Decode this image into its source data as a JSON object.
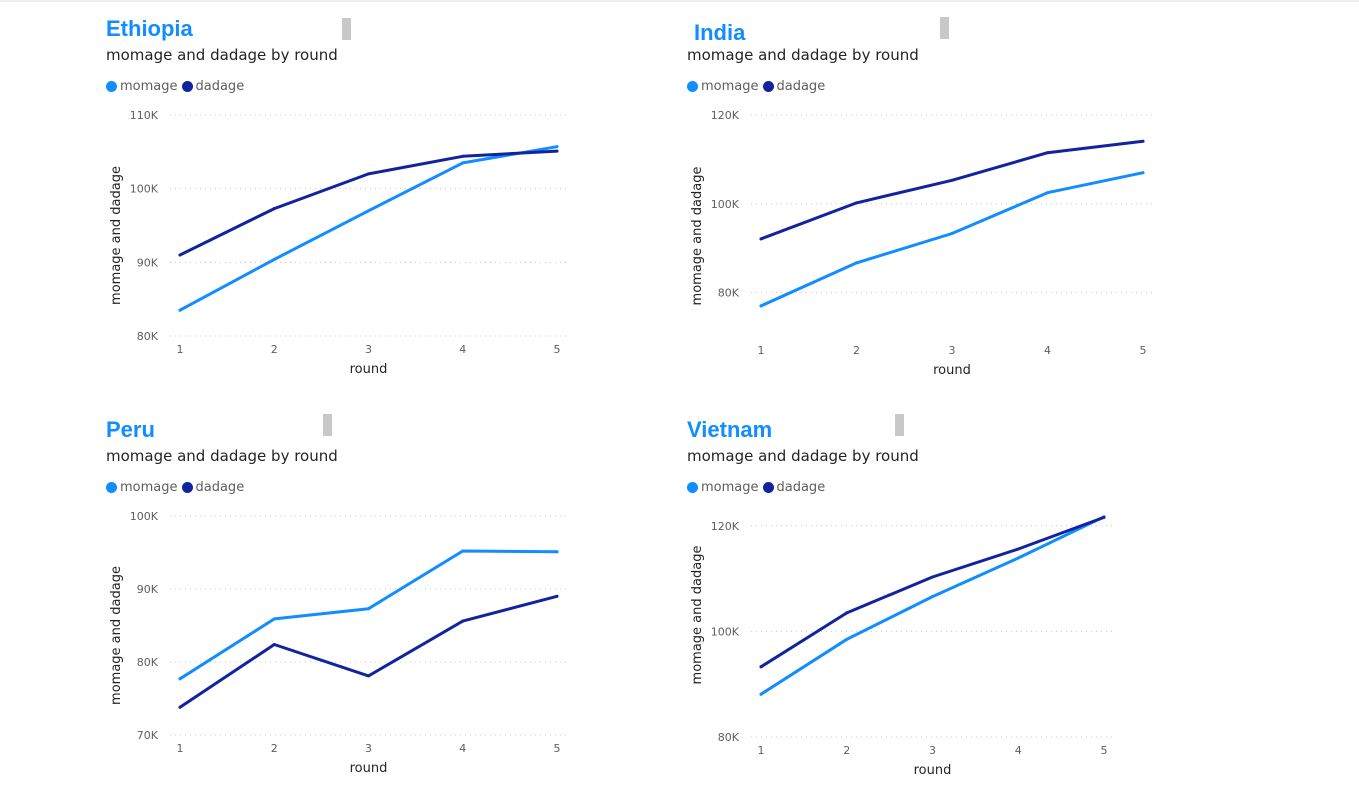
{
  "colors": {
    "momage": "#118DFF",
    "dadage": "#12239E",
    "title": "#118DFF"
  },
  "legend": {
    "momage": "momage",
    "dadage": "dadage"
  },
  "chart_data": [
    {
      "type": "line",
      "country": "Ethiopia",
      "title": "momage and dadage by round",
      "xlabel": "round",
      "ylabel": "momage and dadage",
      "x": [
        1,
        2,
        3,
        4,
        5
      ],
      "ylim": [
        80000,
        110000
      ],
      "yticks": [
        "80K",
        "90K",
        "100K",
        "110K"
      ],
      "grid": true,
      "legend_position": "top-left",
      "series": [
        {
          "name": "momage",
          "values": [
            83500,
            90400,
            97000,
            103500,
            105700
          ]
        },
        {
          "name": "dadage",
          "values": [
            91000,
            97300,
            102000,
            104400,
            105100
          ]
        }
      ]
    },
    {
      "type": "line",
      "country": "India",
      "title": "momage and dadage by round",
      "xlabel": "round",
      "ylabel": "momage and dadage",
      "x": [
        1,
        2,
        3,
        4,
        5
      ],
      "ylim": [
        70000,
        120000
      ],
      "yticks": [
        "80K",
        "100K",
        "120K"
      ],
      "grid": true,
      "legend_position": "top-left",
      "series": [
        {
          "name": "momage",
          "values": [
            77000,
            86700,
            93300,
            102500,
            107000
          ]
        },
        {
          "name": "dadage",
          "values": [
            92100,
            100200,
            105300,
            111500,
            114100
          ]
        }
      ]
    },
    {
      "type": "line",
      "country": "Peru",
      "title": "momage and dadage by round",
      "xlabel": "round",
      "ylabel": "momage and dadage",
      "x": [
        1,
        2,
        3,
        4,
        5
      ],
      "ylim": [
        70000,
        100000
      ],
      "yticks": [
        "70K",
        "80K",
        "90K",
        "100K"
      ],
      "grid": true,
      "legend_position": "top-left",
      "series": [
        {
          "name": "momage",
          "values": [
            77700,
            85900,
            87300,
            95200,
            95100
          ]
        },
        {
          "name": "dadage",
          "values": [
            73800,
            82400,
            78100,
            85600,
            89000
          ]
        }
      ]
    },
    {
      "type": "line",
      "country": "Vietnam",
      "title": "momage and dadage by round",
      "xlabel": "round",
      "ylabel": "momage and dadage",
      "x": [
        1,
        2,
        3,
        4,
        5
      ],
      "ylim": [
        80000,
        130000
      ],
      "yticks": [
        "80K",
        "100K",
        "120K"
      ],
      "grid": true,
      "legend_position": "top-left",
      "series": [
        {
          "name": "momage",
          "values": [
            88100,
            98500,
            106600,
            113900,
            121700
          ]
        },
        {
          "name": "dadage",
          "values": [
            93300,
            103500,
            110300,
            115600,
            121600
          ]
        }
      ]
    }
  ]
}
